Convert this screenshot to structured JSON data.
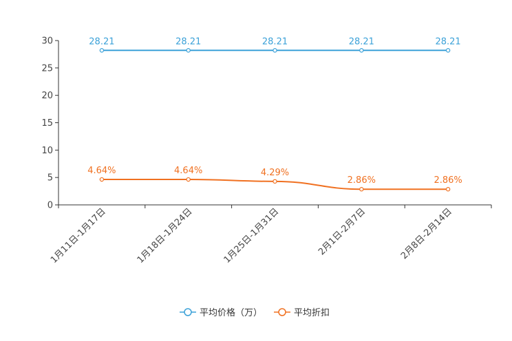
{
  "chart_data": {
    "type": "line",
    "categories": [
      "1月11日-1月17日",
      "1月18日-1月24日",
      "1月25日-1月31日",
      "2月1日-2月7日",
      "2月8日-2月14日"
    ],
    "series": [
      {
        "name": "平均价格（万）",
        "color": "#3ba1d8",
        "values": [
          28.21,
          28.21,
          28.21,
          28.21,
          28.21
        ],
        "labels": [
          "28.21",
          "28.21",
          "28.21",
          "28.21",
          "28.21"
        ]
      },
      {
        "name": "平均折扣",
        "color": "#f07020",
        "values": [
          4.64,
          4.64,
          4.29,
          2.86,
          2.86
        ],
        "labels": [
          "4.64%",
          "4.64%",
          "4.29%",
          "2.86%",
          "2.86%"
        ]
      }
    ],
    "ylim": [
      0,
      30
    ],
    "yticks": [
      "0",
      "5",
      "10",
      "15",
      "20",
      "25",
      "30"
    ],
    "legend_position": "bottom-center"
  }
}
